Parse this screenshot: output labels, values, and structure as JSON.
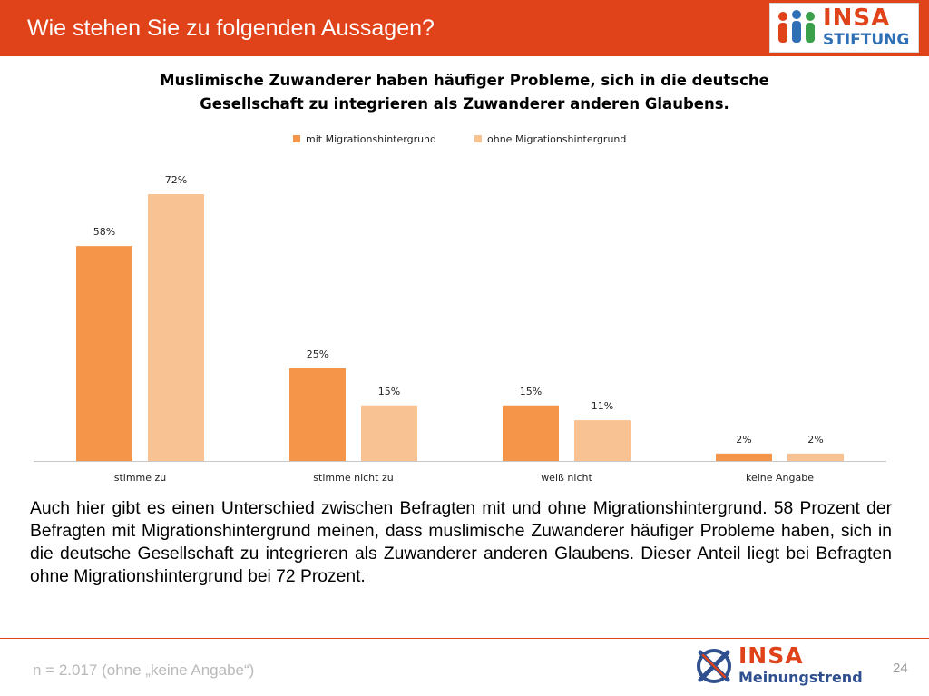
{
  "header": {
    "title": "Wie stehen Sie zu folgenden Aussagen?",
    "color": "#e0421a"
  },
  "logo_top": {
    "word": "INSA",
    "sub": "STIFTUNG",
    "icon": "people-group-icon"
  },
  "chart_data": {
    "type": "bar",
    "title_lines": [
      "Muslimische Zuwanderer haben häufiger Probleme, sich in die deutsche",
      "Gesellschaft zu integrieren als Zuwanderer anderen Glaubens."
    ],
    "categories": [
      "stimme zu",
      "stimme nicht zu",
      "weiß nicht",
      "keine Angabe"
    ],
    "series": [
      {
        "name": "mit Migrationshintergrund",
        "color": "#f5954a",
        "values": [
          58,
          25,
          15,
          2
        ],
        "labels": [
          "58%",
          "25%",
          "15%",
          "2%"
        ]
      },
      {
        "name": "ohne Migrationshintergrund",
        "color": "#f9c293",
        "values": [
          72,
          15,
          11,
          2
        ],
        "labels": [
          "72%",
          "15%",
          "11%",
          "2%"
        ]
      }
    ],
    "ylim": [
      0,
      80
    ],
    "grid": false,
    "legend": "top-center",
    "unit": "%"
  },
  "paragraph": "Auch hier gibt es einen Unterschied zwischen Befragten mit und ohne Migrationshintergrund. 58 Prozent der Befragten mit Migrationshintergrund meinen, dass muslimische Zuwanderer häufiger Probleme haben, sich in die deutsche Gesellschaft zu integrieren als Zuwanderer anderen Glaubens. Dieser Anteil liegt bei Befragten ohne Migrationshintergrund bei 72 Prozent.",
  "footer": {
    "note": "n = 2.017 (ohne „keine Angabe“)",
    "logo_word": "INSA",
    "logo_sub": "Meinungstrend",
    "logo_icon": "insa-x-globe-icon",
    "page_number": "24"
  }
}
